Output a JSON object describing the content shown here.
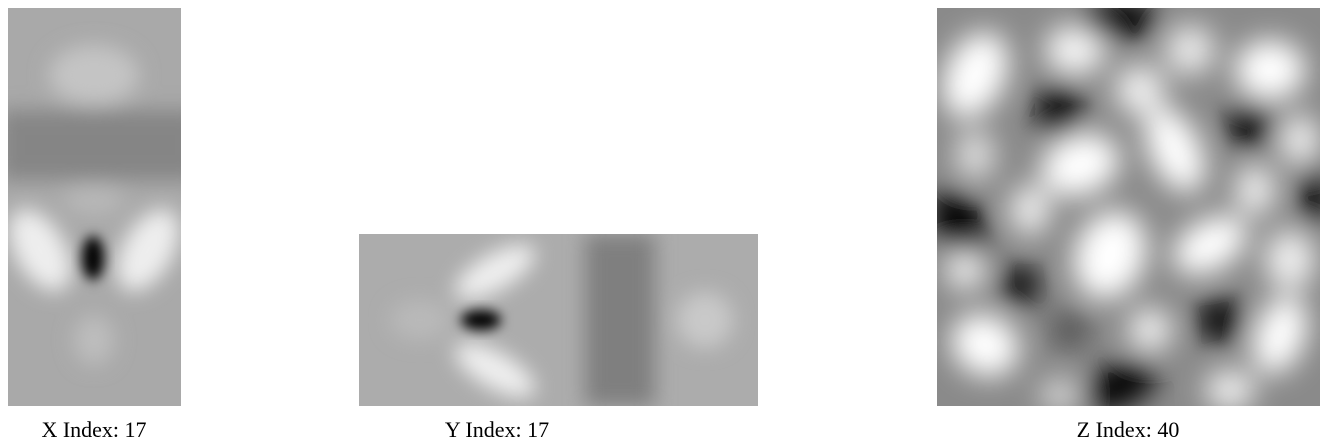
{
  "panels": [
    {
      "caption": "X Index: 17"
    },
    {
      "caption": "Y Index: 17"
    },
    {
      "caption": "Z Index: 40"
    }
  ]
}
